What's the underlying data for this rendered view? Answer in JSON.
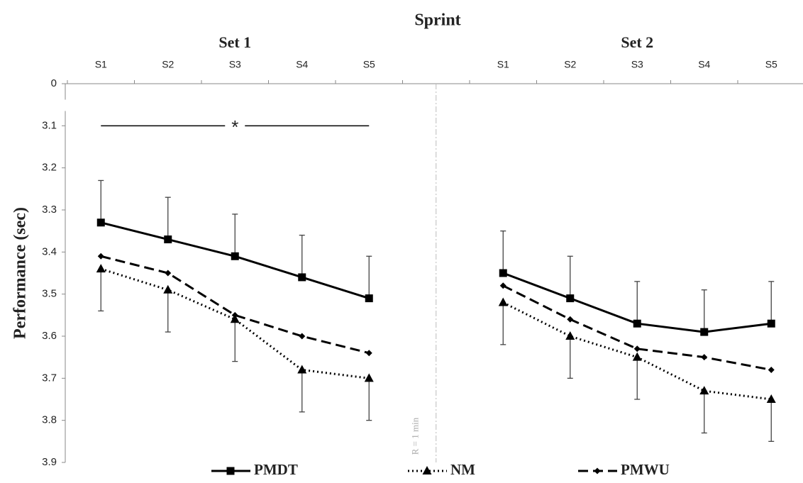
{
  "chart_data": {
    "type": "line",
    "title": "Sprint",
    "y_label": "Performance (sec)",
    "groups": [
      {
        "label": "Set 1"
      },
      {
        "label": "Set 2"
      }
    ],
    "categories": [
      "S1",
      "S2",
      "S3",
      "S4",
      "S5",
      null,
      "S1",
      "S2",
      "S3",
      "S4",
      "S5"
    ],
    "series": [
      {
        "name": "PMDT",
        "color": "#000000",
        "dash": "solid",
        "marker": "square",
        "error_side": "minus",
        "values": [
          3.33,
          3.37,
          3.41,
          3.46,
          3.51,
          null,
          3.45,
          3.51,
          3.57,
          3.59,
          3.57
        ],
        "errors": [
          0.1,
          0.1,
          0.1,
          0.1,
          0.1,
          null,
          0.1,
          0.1,
          0.1,
          0.1,
          0.1
        ]
      },
      {
        "name": "NM",
        "color": "#000000",
        "dash": "dotted",
        "marker": "triangle",
        "error_side": "plus",
        "values": [
          3.44,
          3.49,
          3.56,
          3.68,
          3.7,
          null,
          3.52,
          3.6,
          3.65,
          3.73,
          3.75
        ],
        "errors": [
          0.1,
          0.1,
          0.1,
          0.1,
          0.1,
          null,
          0.1,
          0.1,
          0.1,
          0.1,
          0.1
        ]
      },
      {
        "name": "PMWU",
        "color": "#000000",
        "dash": "dashed",
        "marker": "diamond",
        "values": [
          3.41,
          3.45,
          3.55,
          3.6,
          3.64,
          null,
          3.48,
          3.56,
          3.63,
          3.65,
          3.68
        ]
      }
    ],
    "ylim": [
      0,
      3.9
    ],
    "y_break": [
      0,
      3
    ],
    "y_inverted": true,
    "yticks": [
      0,
      3.1,
      3.2,
      3.3,
      3.4,
      3.5,
      3.6,
      3.7,
      3.8,
      3.9
    ],
    "divider_label": "R = 1 min",
    "significance_label": "*",
    "legend": "bottom"
  }
}
